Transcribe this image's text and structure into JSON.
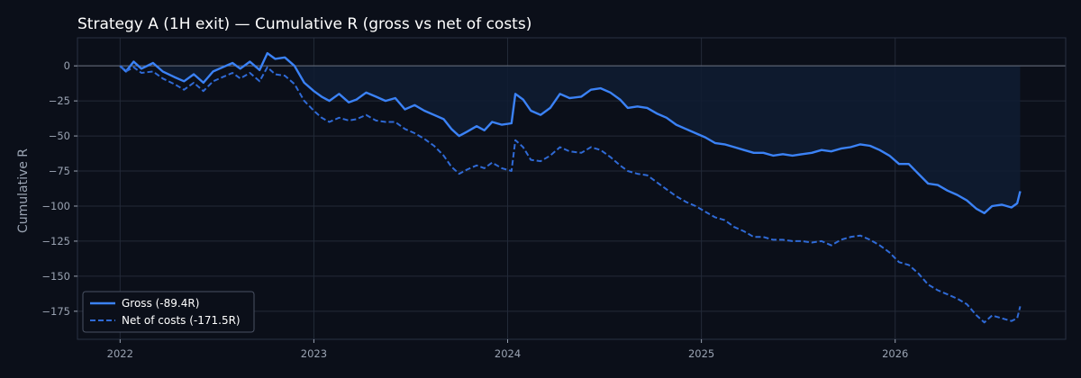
{
  "chart_data": {
    "type": "line",
    "title": "Strategy A (1H exit) — Cumulative R (gross vs net of costs)",
    "xlabel": "",
    "ylabel": "Cumulative R",
    "xlim": [
      2021.78,
      2026.88
    ],
    "ylim": [
      -195,
      20
    ],
    "x_ticks": [
      2022,
      2023,
      2024,
      2025,
      2026
    ],
    "y_ticks": [
      0,
      -25,
      -50,
      -75,
      -100,
      -125,
      -150,
      -175
    ],
    "grid": true,
    "legend_position": "bottom-left",
    "series": [
      {
        "name": "Gross (-89.4R)",
        "style": "solid",
        "color": "#3b82f6",
        "points": [
          [
            2022.0,
            0
          ],
          [
            2022.03,
            -4
          ],
          [
            2022.07,
            3
          ],
          [
            2022.11,
            -2
          ],
          [
            2022.17,
            2
          ],
          [
            2022.22,
            -4
          ],
          [
            2022.28,
            -8
          ],
          [
            2022.33,
            -11
          ],
          [
            2022.38,
            -6
          ],
          [
            2022.43,
            -12
          ],
          [
            2022.48,
            -4
          ],
          [
            2022.53,
            -1
          ],
          [
            2022.58,
            2
          ],
          [
            2022.62,
            -2
          ],
          [
            2022.67,
            3
          ],
          [
            2022.72,
            -3
          ],
          [
            2022.76,
            9
          ],
          [
            2022.8,
            5
          ],
          [
            2022.85,
            6
          ],
          [
            2022.9,
            0
          ],
          [
            2022.95,
            -12
          ],
          [
            2023.0,
            -18
          ],
          [
            2023.04,
            -22
          ],
          [
            2023.08,
            -25
          ],
          [
            2023.13,
            -20
          ],
          [
            2023.18,
            -26
          ],
          [
            2023.22,
            -24
          ],
          [
            2023.27,
            -19
          ],
          [
            2023.32,
            -22
          ],
          [
            2023.37,
            -25
          ],
          [
            2023.42,
            -23
          ],
          [
            2023.47,
            -31
          ],
          [
            2023.52,
            -28
          ],
          [
            2023.57,
            -32
          ],
          [
            2023.62,
            -35
          ],
          [
            2023.67,
            -38
          ],
          [
            2023.71,
            -45
          ],
          [
            2023.75,
            -50
          ],
          [
            2023.79,
            -47
          ],
          [
            2023.84,
            -43
          ],
          [
            2023.88,
            -46
          ],
          [
            2023.92,
            -40
          ],
          [
            2023.97,
            -42
          ],
          [
            2024.02,
            -41
          ],
          [
            2024.04,
            -20
          ],
          [
            2024.08,
            -24
          ],
          [
            2024.12,
            -32
          ],
          [
            2024.17,
            -35
          ],
          [
            2024.22,
            -30
          ],
          [
            2024.27,
            -20
          ],
          [
            2024.32,
            -23
          ],
          [
            2024.38,
            -22
          ],
          [
            2024.43,
            -17
          ],
          [
            2024.48,
            -16
          ],
          [
            2024.53,
            -19
          ],
          [
            2024.58,
            -24
          ],
          [
            2024.62,
            -30
          ],
          [
            2024.67,
            -29
          ],
          [
            2024.72,
            -30
          ],
          [
            2024.77,
            -34
          ],
          [
            2024.82,
            -37
          ],
          [
            2024.87,
            -42
          ],
          [
            2024.92,
            -45
          ],
          [
            2024.97,
            -48
          ],
          [
            2025.02,
            -51
          ],
          [
            2025.07,
            -55
          ],
          [
            2025.12,
            -56
          ],
          [
            2025.17,
            -58
          ],
          [
            2025.22,
            -60
          ],
          [
            2025.27,
            -62
          ],
          [
            2025.32,
            -62
          ],
          [
            2025.37,
            -64
          ],
          [
            2025.42,
            -63
          ],
          [
            2025.47,
            -64
          ],
          [
            2025.52,
            -63
          ],
          [
            2025.57,
            -62
          ],
          [
            2025.62,
            -60
          ],
          [
            2025.67,
            -61
          ],
          [
            2025.72,
            -59
          ],
          [
            2025.77,
            -58
          ],
          [
            2025.82,
            -56
          ],
          [
            2025.87,
            -57
          ],
          [
            2025.92,
            -60
          ],
          [
            2025.97,
            -64
          ],
          [
            2026.02,
            -70
          ],
          [
            2026.07,
            -70
          ],
          [
            2026.12,
            -77
          ],
          [
            2026.17,
            -84
          ],
          [
            2026.22,
            -85
          ],
          [
            2026.27,
            -89
          ],
          [
            2026.32,
            -92
          ],
          [
            2026.37,
            -96
          ],
          [
            2026.42,
            -102
          ],
          [
            2026.46,
            -105
          ],
          [
            2026.5,
            -100
          ],
          [
            2026.55,
            -99
          ],
          [
            2026.6,
            -101
          ],
          [
            2026.63,
            -98
          ],
          [
            2026.645,
            -89.4
          ]
        ]
      },
      {
        "name": "Net of costs (-171.5R)",
        "style": "dashed",
        "color": "#2f6ad6",
        "points": [
          [
            2022.0,
            0
          ],
          [
            2022.03,
            -4
          ],
          [
            2022.07,
            -1
          ],
          [
            2022.11,
            -5
          ],
          [
            2022.17,
            -4
          ],
          [
            2022.22,
            -9
          ],
          [
            2022.28,
            -13
          ],
          [
            2022.33,
            -17
          ],
          [
            2022.38,
            -12
          ],
          [
            2022.43,
            -18
          ],
          [
            2022.48,
            -11
          ],
          [
            2022.53,
            -8
          ],
          [
            2022.58,
            -5
          ],
          [
            2022.62,
            -9
          ],
          [
            2022.67,
            -5
          ],
          [
            2022.72,
            -11
          ],
          [
            2022.76,
            -1
          ],
          [
            2022.8,
            -6
          ],
          [
            2022.85,
            -7
          ],
          [
            2022.9,
            -13
          ],
          [
            2022.95,
            -25
          ],
          [
            2023.0,
            -32
          ],
          [
            2023.04,
            -37
          ],
          [
            2023.08,
            -40
          ],
          [
            2023.13,
            -37
          ],
          [
            2023.18,
            -39
          ],
          [
            2023.22,
            -38
          ],
          [
            2023.27,
            -35
          ],
          [
            2023.32,
            -39
          ],
          [
            2023.37,
            -40
          ],
          [
            2023.42,
            -40
          ],
          [
            2023.47,
            -45
          ],
          [
            2023.52,
            -48
          ],
          [
            2023.57,
            -52
          ],
          [
            2023.62,
            -57
          ],
          [
            2023.67,
            -64
          ],
          [
            2023.71,
            -72
          ],
          [
            2023.75,
            -77
          ],
          [
            2023.79,
            -74
          ],
          [
            2023.84,
            -71
          ],
          [
            2023.88,
            -73
          ],
          [
            2023.92,
            -69
          ],
          [
            2023.97,
            -73
          ],
          [
            2024.02,
            -75
          ],
          [
            2024.04,
            -53
          ],
          [
            2024.08,
            -58
          ],
          [
            2024.12,
            -67
          ],
          [
            2024.17,
            -68
          ],
          [
            2024.22,
            -64
          ],
          [
            2024.27,
            -58
          ],
          [
            2024.32,
            -61
          ],
          [
            2024.38,
            -62
          ],
          [
            2024.43,
            -58
          ],
          [
            2024.48,
            -60
          ],
          [
            2024.53,
            -65
          ],
          [
            2024.58,
            -71
          ],
          [
            2024.62,
            -75
          ],
          [
            2024.67,
            -77
          ],
          [
            2024.72,
            -78
          ],
          [
            2024.77,
            -83
          ],
          [
            2024.82,
            -88
          ],
          [
            2024.87,
            -93
          ],
          [
            2024.92,
            -97
          ],
          [
            2024.97,
            -100
          ],
          [
            2025.02,
            -104
          ],
          [
            2025.07,
            -108
          ],
          [
            2025.12,
            -110
          ],
          [
            2025.17,
            -115
          ],
          [
            2025.22,
            -118
          ],
          [
            2025.27,
            -122
          ],
          [
            2025.32,
            -122
          ],
          [
            2025.37,
            -124
          ],
          [
            2025.42,
            -124
          ],
          [
            2025.47,
            -125
          ],
          [
            2025.52,
            -125
          ],
          [
            2025.57,
            -126
          ],
          [
            2025.62,
            -125
          ],
          [
            2025.67,
            -128
          ],
          [
            2025.72,
            -124
          ],
          [
            2025.77,
            -122
          ],
          [
            2025.82,
            -121
          ],
          [
            2025.87,
            -124
          ],
          [
            2025.92,
            -128
          ],
          [
            2025.97,
            -133
          ],
          [
            2026.02,
            -140
          ],
          [
            2026.07,
            -142
          ],
          [
            2026.12,
            -148
          ],
          [
            2026.17,
            -156
          ],
          [
            2026.22,
            -160
          ],
          [
            2026.27,
            -163
          ],
          [
            2026.32,
            -166
          ],
          [
            2026.37,
            -170
          ],
          [
            2026.42,
            -178
          ],
          [
            2026.46,
            -183
          ],
          [
            2026.5,
            -178
          ],
          [
            2026.55,
            -180
          ],
          [
            2026.6,
            -182
          ],
          [
            2026.63,
            -180
          ],
          [
            2026.645,
            -171.5
          ]
        ]
      }
    ]
  },
  "colors": {
    "background": "#0b0f19",
    "plot_background": "#0b0f19",
    "grid": "#232a38",
    "zero_line": "#6b7280",
    "fill": "#0f1c33",
    "text": "#ffffff",
    "muted_text": "#9aa3b2"
  }
}
